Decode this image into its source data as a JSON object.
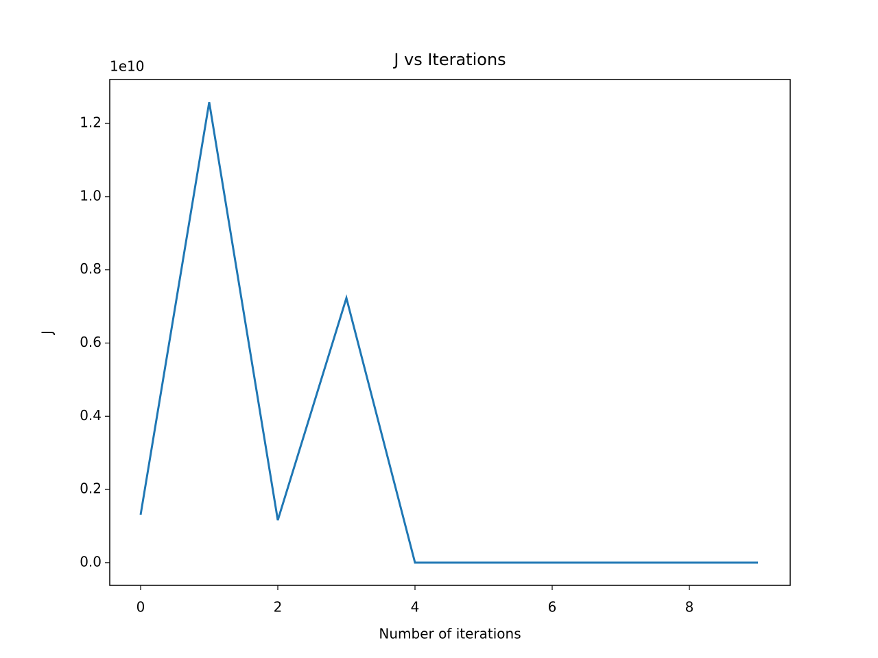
{
  "chart_data": {
    "type": "line",
    "title": "J vs Iterations",
    "x_label": "Number of iterations",
    "y_label": "J",
    "y_offset_label": "1e10",
    "x": [
      0,
      1,
      2,
      3,
      4,
      5,
      6,
      7,
      8,
      9
    ],
    "series": [
      {
        "color": "#1f77b4",
        "values": [
          0.131,
          1.258,
          0.116,
          0.723,
          0,
          0,
          0,
          0,
          0,
          0
        ]
      }
    ],
    "xlim": [
      -0.45,
      9.47
    ],
    "ylim": [
      -0.062,
      1.32
    ],
    "xticks": [
      0,
      2,
      4,
      6,
      8
    ],
    "yticks": [
      {
        "value": 0,
        "label": "0.0"
      },
      {
        "value": 0.2,
        "label": "0.2"
      },
      {
        "value": 0.4,
        "label": "0.4"
      },
      {
        "value": 0.6,
        "label": "0.6"
      },
      {
        "value": 0.8,
        "label": "0.8"
      },
      {
        "value": 1.0,
        "label": "1.0"
      },
      {
        "value": 1.2,
        "label": "1.2"
      }
    ],
    "grid": false
  }
}
